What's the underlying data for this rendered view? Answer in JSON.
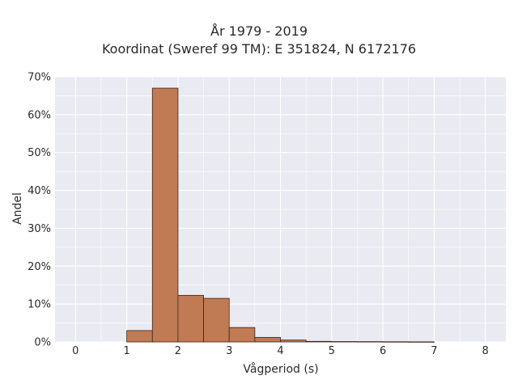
{
  "chart_data": {
    "type": "bar",
    "title": "År 1979 - 2019",
    "subtitle": "Koordinat (Sweref 99 TM): E 351824, N 6172176",
    "xlabel": "Vågperiod (s)",
    "ylabel": "Andel",
    "xlim": [
      -0.4,
      8.4
    ],
    "ylim": [
      0,
      70
    ],
    "x_ticks": [
      0,
      1,
      2,
      3,
      4,
      5,
      6,
      7,
      8
    ],
    "y_ticks": [
      0,
      10,
      20,
      30,
      40,
      50,
      60,
      70
    ],
    "y_tick_labels": [
      "0%",
      "10%",
      "20%",
      "30%",
      "40%",
      "50%",
      "60%",
      "70%"
    ],
    "grid": true,
    "bar_color": "#c07b55",
    "bar_edge_color": "#3a2418",
    "plot_background": "#eaeaf2",
    "bin_width": 0.5,
    "bins": [
      {
        "start": 1.0,
        "end": 1.5,
        "value": 3.0
      },
      {
        "start": 1.5,
        "end": 2.0,
        "value": 67.0
      },
      {
        "start": 2.0,
        "end": 2.5,
        "value": 12.3
      },
      {
        "start": 2.5,
        "end": 3.0,
        "value": 11.5
      },
      {
        "start": 3.0,
        "end": 3.5,
        "value": 3.8
      },
      {
        "start": 3.5,
        "end": 4.0,
        "value": 1.2
      },
      {
        "start": 4.0,
        "end": 4.5,
        "value": 0.5
      },
      {
        "start": 4.5,
        "end": 5.0,
        "value": 0.15
      },
      {
        "start": 5.0,
        "end": 5.5,
        "value": 0.1
      },
      {
        "start": 5.5,
        "end": 6.0,
        "value": 0.08
      },
      {
        "start": 6.0,
        "end": 6.5,
        "value": 0.05
      },
      {
        "start": 6.5,
        "end": 7.0,
        "value": 0.03
      }
    ]
  }
}
